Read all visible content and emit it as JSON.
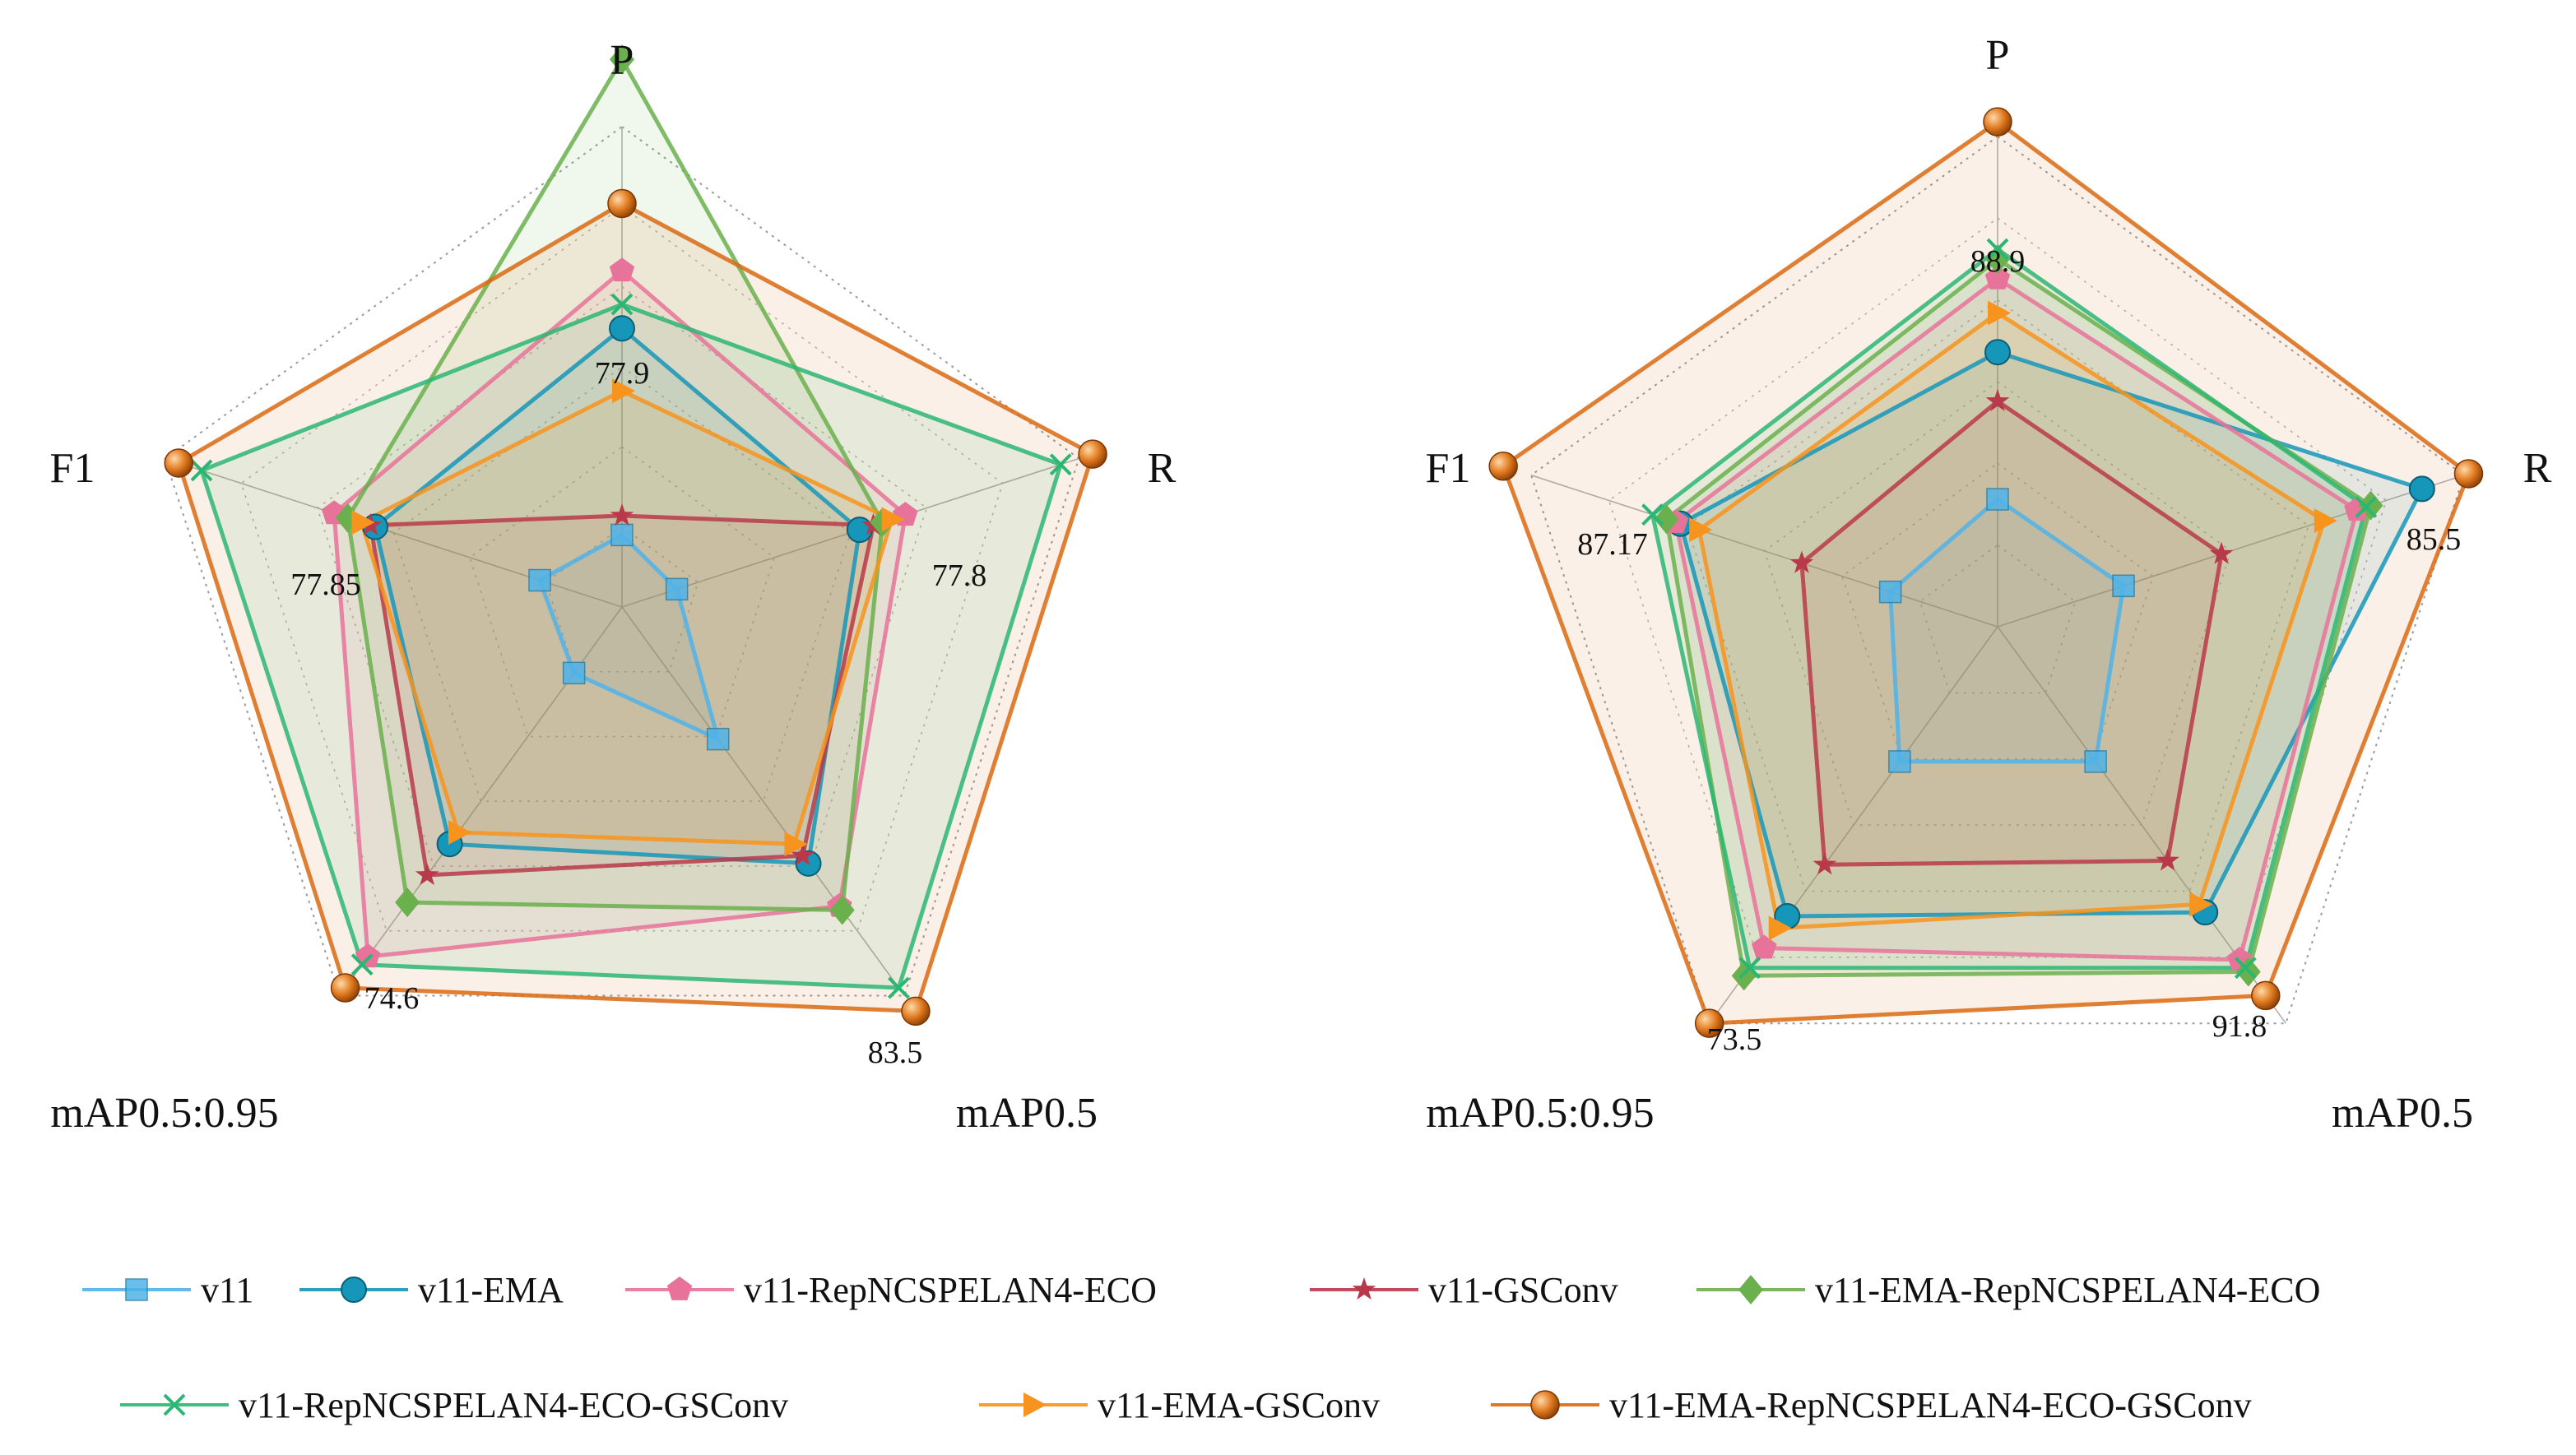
{
  "chart_data": [
    {
      "type": "radar",
      "title": "",
      "axes": [
        "P",
        "R",
        "mAP0.5",
        "mAP0.5:0.95",
        "F1"
      ],
      "max_labels": [
        "77.9",
        "77.8",
        "83.5",
        "74.6",
        "77.85"
      ],
      "series": [
        {
          "name": "v11",
          "values": [
            0.15,
            0.12,
            0.34,
            0.17,
            0.18
          ]
        },
        {
          "name": "v11-EMA",
          "values": [
            0.58,
            0.52,
            0.66,
            0.61,
            0.54
          ]
        },
        {
          "name": "v11-RepNCSPELAN4-ECO",
          "values": [
            0.7,
            0.62,
            0.77,
            0.9,
            0.63
          ]
        },
        {
          "name": "v11-GSConv",
          "values": [
            0.19,
            0.55,
            0.64,
            0.69,
            0.55
          ]
        },
        {
          "name": "v11-EMA-RepNCSPELAN4-ECO",
          "values": [
            1.14,
            0.57,
            0.78,
            0.76,
            0.6
          ]
        },
        {
          "name": "v11-RepNCSPELAN4-ECO-GSConv",
          "values": [
            0.63,
            0.96,
            0.98,
            0.92,
            0.92
          ]
        },
        {
          "name": "v11-EMA-GSConv",
          "values": [
            0.45,
            0.59,
            0.61,
            0.58,
            0.57
          ]
        },
        {
          "name": "v11-EMA-RepNCSPELAN4-ECO-GSConv",
          "values": [
            0.84,
            1.03,
            1.04,
            0.98,
            0.97
          ]
        }
      ]
    },
    {
      "type": "radar",
      "title": "",
      "axes": [
        "P",
        "R",
        "mAP0.5",
        "mAP0.5:0.95",
        "F1"
      ],
      "max_labels": [
        "88.9",
        "85.5",
        "91.8",
        "73.5",
        "87.17"
      ],
      "series": [
        {
          "name": "v11",
          "values": [
            0.26,
            0.27,
            0.34,
            0.34,
            0.23
          ]
        },
        {
          "name": "v11-EMA",
          "values": [
            0.56,
            0.91,
            0.72,
            0.73,
            0.68
          ]
        },
        {
          "name": "v11-RepNCSPELAN4-ECO",
          "values": [
            0.71,
            0.77,
            0.84,
            0.81,
            0.69
          ]
        },
        {
          "name": "v11-GSConv",
          "values": [
            0.46,
            0.48,
            0.59,
            0.6,
            0.42
          ]
        },
        {
          "name": "v11-EMA-RepNCSPELAN4-ECO",
          "values": [
            0.75,
            0.8,
            0.87,
            0.88,
            0.71
          ]
        },
        {
          "name": "v11-RepNCSPELAN4-ECO-GSConv",
          "values": [
            0.77,
            0.79,
            0.86,
            0.86,
            0.74
          ]
        },
        {
          "name": "v11-EMA-GSConv",
          "values": [
            0.64,
            0.7,
            0.7,
            0.76,
            0.64
          ]
        },
        {
          "name": "v11-EMA-RepNCSPELAN4-ECO-GSConv",
          "values": [
            1.03,
            1.01,
            0.93,
            1.0,
            1.06
          ]
        }
      ]
    }
  ],
  "styles": {
    "v11": {
      "color": "#4FB3E8",
      "marker": "square"
    },
    "v11-EMA": {
      "color": "#1696B8",
      "marker": "circle"
    },
    "v11-RepNCSPELAN4-ECO": {
      "color": "#E8739A",
      "marker": "pentagon"
    },
    "v11-GSConv": {
      "color": "#B83A4A",
      "marker": "star"
    },
    "v11-EMA-RepNCSPELAN4-ECO": {
      "color": "#6AB04C",
      "marker": "diamond"
    },
    "v11-RepNCSPELAN4-ECO-GSConv": {
      "color": "#2BB673",
      "marker": "cross"
    },
    "v11-EMA-GSConv": {
      "color": "#F7941D",
      "marker": "triangle-right"
    },
    "v11-EMA-RepNCSPELAN4-ECO-GSConv": {
      "color": "#D96A12",
      "marker": "sphere"
    }
  },
  "legend": [
    "v11",
    "v11-EMA",
    "v11-RepNCSPELAN4-ECO",
    "v11-GSConv",
    "v11-EMA-RepNCSPELAN4-ECO",
    "v11-RepNCSPELAN4-ECO-GSConv",
    "v11-EMA-GSConv",
    "v11-EMA-RepNCSPELAN4-ECO-GSConv"
  ]
}
